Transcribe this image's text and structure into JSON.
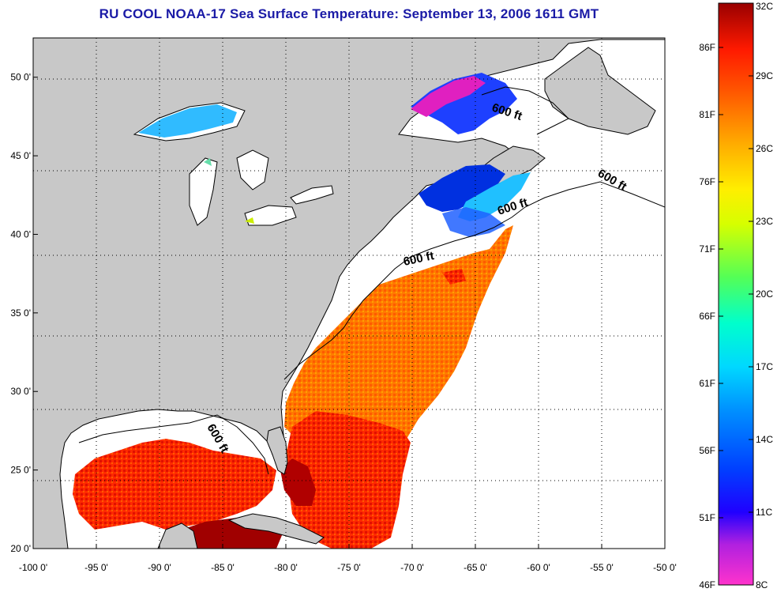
{
  "title": "RU COOL  NOAA-17  Sea Surface Temperature:  September 13, 2006 1611 GMT",
  "map": {
    "lon_range": [
      -100,
      -50
    ],
    "lat_range": [
      20,
      52.5
    ],
    "lon_ticks": [
      {
        "value": -100,
        "label": "-100 0'"
      },
      {
        "value": -95,
        "label": "-95 0'"
      },
      {
        "value": -90,
        "label": "-90 0'"
      },
      {
        "value": -85,
        "label": "-85 0'"
      },
      {
        "value": -80,
        "label": "-80 0'"
      },
      {
        "value": -75,
        "label": "-75 0'"
      },
      {
        "value": -70,
        "label": "-70 0'"
      },
      {
        "value": -65,
        "label": "-65 0'"
      },
      {
        "value": -60,
        "label": "-60 0'"
      },
      {
        "value": -55,
        "label": "-55 0'"
      },
      {
        "value": -50,
        "label": "-50 0'"
      }
    ],
    "lat_ticks": [
      {
        "value": 20,
        "label": "20 0'"
      },
      {
        "value": 25,
        "label": "25 0'"
      },
      {
        "value": 30,
        "label": "30 0'"
      },
      {
        "value": 35,
        "label": "35 0'"
      },
      {
        "value": 40,
        "label": "40 0'"
      },
      {
        "value": 45,
        "label": "45 0'"
      },
      {
        "value": 50,
        "label": "50 0'"
      }
    ],
    "depth_labels": [
      "600 ft",
      "600 ft",
      "600 ft",
      "600 ft",
      "600 ft"
    ],
    "land_color": "#c8c8c8",
    "no_data_color": "#ffffff",
    "grid": "dotted"
  },
  "colorbar": {
    "celsius_labels": [
      "32C",
      "29C",
      "26C",
      "23C",
      "20C",
      "17C",
      "14C",
      "11C",
      "8C"
    ],
    "fahrenheit_labels": [
      "86F",
      "81F",
      "76F",
      "71F",
      "66F",
      "61F",
      "56F",
      "51F",
      "46F"
    ],
    "range_c": [
      8,
      32
    ],
    "colors": [
      "#ff33cc",
      "#7a1fd6",
      "#0000ff",
      "#0077ff",
      "#00ccff",
      "#00ffdd",
      "#33ff66",
      "#ccff00",
      "#ffee00",
      "#ffaa00",
      "#ff6600",
      "#ff1a00",
      "#cc0000",
      "#8b0000"
    ]
  }
}
